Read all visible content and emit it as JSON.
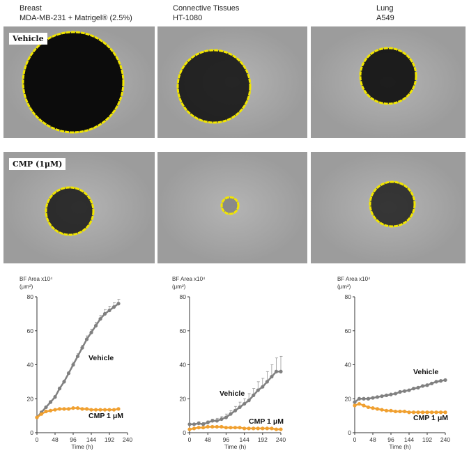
{
  "columns": [
    {
      "tissue": "Breast",
      "cell_line": "MDA-MB-231 + Matrigel® (2.5%)"
    },
    {
      "tissue": "Connective Tissues",
      "cell_line": "HT-1080"
    },
    {
      "tissue": "Lung",
      "cell_line": "A549"
    }
  ],
  "rows": [
    {
      "label": "Vehicle"
    },
    {
      "label": "CMP (1μM)"
    }
  ],
  "colors": {
    "vehicle": "#808080",
    "cmp": "#f0a030",
    "outline": "#f2e600"
  },
  "chart_data": [
    {
      "type": "line",
      "ylabel_line1": "BF Area x10⁴",
      "ylabel_line2": "(μm²)",
      "xlabel": "Time (h)",
      "xlim": [
        0,
        240
      ],
      "ylim": [
        0,
        80
      ],
      "xticks": [
        0,
        48,
        96,
        144,
        192,
        240
      ],
      "yticks": [
        0,
        20,
        40,
        60,
        80
      ],
      "grid": false,
      "x": [
        0,
        12,
        24,
        36,
        48,
        60,
        72,
        84,
        96,
        108,
        120,
        132,
        144,
        156,
        168,
        180,
        192,
        204,
        216
      ],
      "series": [
        {
          "name": "Vehicle",
          "values": [
            9,
            12,
            15,
            18,
            21,
            26,
            30,
            35,
            40,
            45,
            50,
            55,
            59,
            63,
            67,
            70,
            72,
            74,
            76
          ],
          "error": [
            0,
            0.5,
            0.5,
            1,
            1,
            1,
            1,
            1,
            1.5,
            1.5,
            1.5,
            2,
            2,
            2,
            2,
            2.5,
            2.5,
            2.5,
            2.5
          ]
        },
        {
          "name": "CMP 1 μM",
          "values": [
            9,
            11,
            12.5,
            13,
            13.5,
            14,
            14,
            14,
            14.5,
            14.5,
            14,
            14,
            13.5,
            13.5,
            13.5,
            13.5,
            13.5,
            13.5,
            14
          ]
        }
      ]
    },
    {
      "type": "line",
      "ylabel_line1": "BF Area x10⁴",
      "ylabel_line2": "(μm²)",
      "xlabel": "Time (h)",
      "xlim": [
        0,
        240
      ],
      "ylim": [
        0,
        80
      ],
      "xticks": [
        0,
        48,
        96,
        144,
        192,
        240
      ],
      "yticks": [
        0,
        20,
        40,
        60,
        80
      ],
      "grid": false,
      "x": [
        0,
        12,
        24,
        36,
        48,
        60,
        72,
        84,
        96,
        108,
        120,
        132,
        144,
        156,
        168,
        180,
        192,
        204,
        216,
        228,
        240
      ],
      "series": [
        {
          "name": "Vehicle",
          "values": [
            5,
            5,
            5.5,
            5,
            6,
            7,
            7,
            8,
            9,
            11,
            13,
            15,
            17,
            19,
            22,
            25,
            27,
            30,
            33,
            36,
            36
          ],
          "error": [
            0.5,
            0.5,
            1,
            1,
            1,
            1,
            1.5,
            1.5,
            2,
            2,
            2.5,
            3,
            3,
            4,
            4,
            5,
            5,
            6,
            7,
            8,
            9
          ]
        },
        {
          "name": "CMP 1 μM",
          "values": [
            2,
            2.5,
            3,
            3,
            3.5,
            3.5,
            3.5,
            3.5,
            3,
            3,
            3,
            3,
            2.5,
            2.5,
            2.5,
            2.5,
            2.5,
            2.5,
            2.5,
            2,
            2
          ]
        }
      ]
    },
    {
      "type": "line",
      "ylabel_line1": "BF Area x10⁴",
      "ylabel_line2": "(μm²)",
      "xlabel": "Time (h)",
      "xlim": [
        0,
        240
      ],
      "ylim": [
        0,
        80
      ],
      "xticks": [
        0,
        48,
        96,
        144,
        192,
        240
      ],
      "yticks": [
        0,
        20,
        40,
        60,
        80
      ],
      "grid": false,
      "x": [
        0,
        12,
        24,
        36,
        48,
        60,
        72,
        84,
        96,
        108,
        120,
        132,
        144,
        156,
        168,
        180,
        192,
        204,
        216,
        228,
        240
      ],
      "series": [
        {
          "name": "Vehicle",
          "values": [
            18,
            20,
            20,
            20,
            20.5,
            21,
            21.5,
            22,
            22.5,
            23,
            24,
            24.5,
            25,
            26,
            26.5,
            27.5,
            28,
            29,
            30,
            30.5,
            31
          ],
          "error": [
            0,
            0,
            0,
            0,
            0,
            0,
            0,
            0,
            0,
            0,
            0,
            0,
            0,
            0,
            0,
            0,
            0,
            0,
            0,
            0,
            0
          ]
        },
        {
          "name": "CMP 1 μM",
          "values": [
            16,
            17,
            16,
            15,
            14.5,
            14,
            13.5,
            13,
            13,
            12.5,
            12.5,
            12.5,
            12,
            12,
            12,
            12,
            12,
            12,
            12,
            12,
            12
          ]
        }
      ]
    }
  ]
}
